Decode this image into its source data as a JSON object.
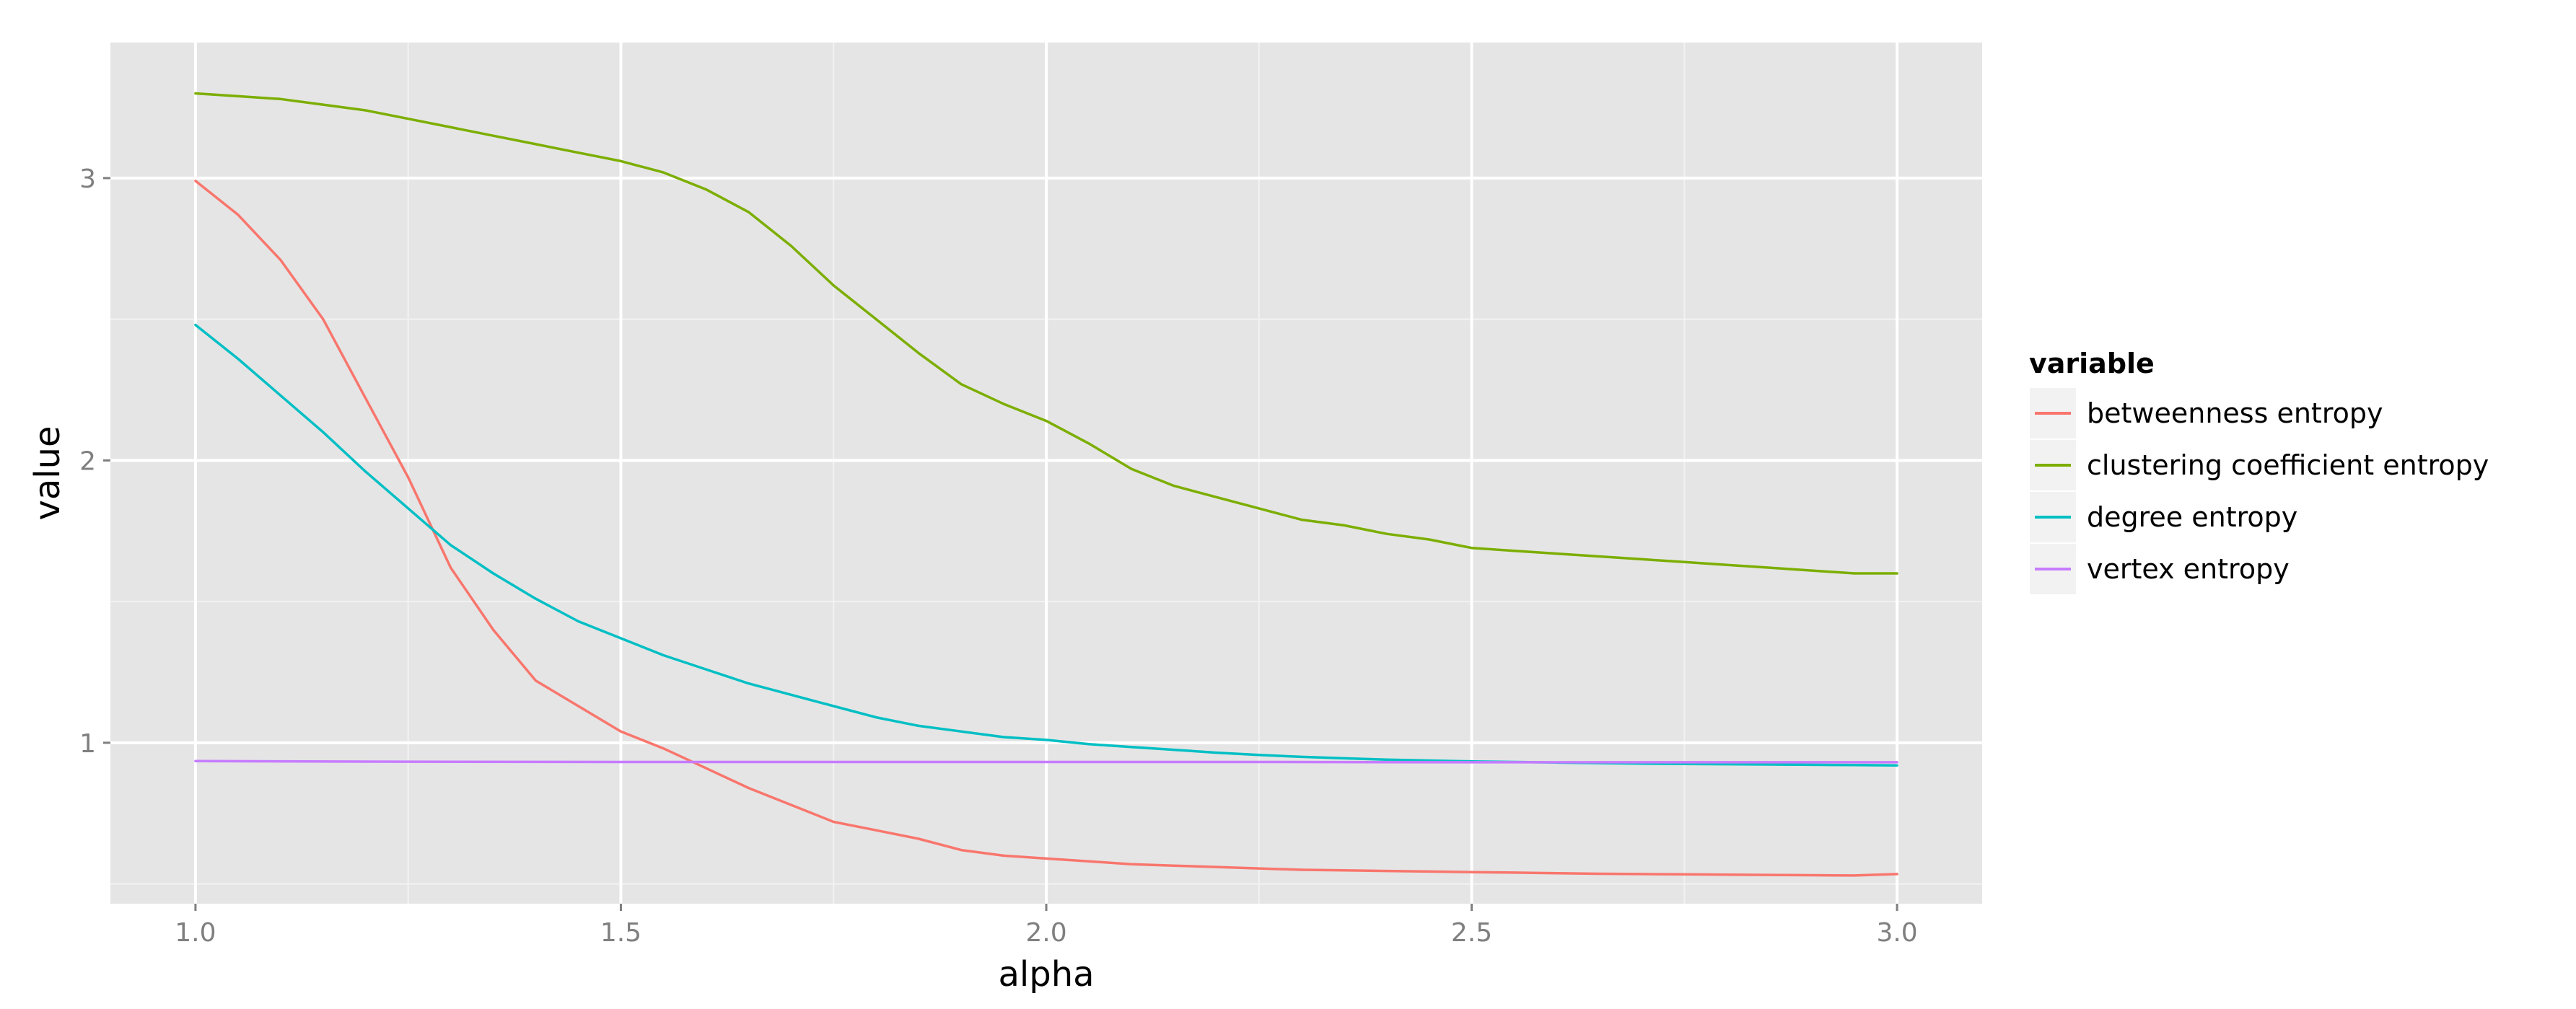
{
  "chart_data": {
    "type": "line",
    "xlabel": "alpha",
    "ylabel": "value",
    "xlim": [
      0.9,
      3.1
    ],
    "ylim": [
      0.43,
      3.48
    ],
    "x_ticks": [
      1.0,
      1.5,
      2.0,
      2.5,
      3.0
    ],
    "x_tick_labels": [
      "1.0",
      "1.5",
      "2.0",
      "2.5",
      "3.0"
    ],
    "y_ticks": [
      1,
      2,
      3
    ],
    "y_tick_labels": [
      "1",
      "2",
      "3"
    ],
    "grid": true,
    "legend": {
      "title": "variable",
      "position": "right"
    },
    "colors": {
      "panel_background": "#e5e5e5",
      "grid_major": "#ffffff",
      "grid_minor": "#f2f2f2",
      "tick_text": "#7f7f7f",
      "legend_key_background": "#f2f2f2"
    },
    "series": [
      {
        "name": "betweenness entropy",
        "color": "#f8766d",
        "x": [
          1.0,
          1.05,
          1.1,
          1.15,
          1.2,
          1.25,
          1.3,
          1.35,
          1.4,
          1.45,
          1.5,
          1.55,
          1.6,
          1.65,
          1.7,
          1.75,
          1.8,
          1.85,
          1.9,
          1.95,
          2.0,
          2.05,
          2.1,
          2.15,
          2.2,
          2.25,
          2.3,
          2.35,
          2.4,
          2.45,
          2.5,
          2.55,
          2.6,
          2.65,
          2.7,
          2.75,
          2.8,
          2.85,
          2.9,
          2.95,
          3.0
        ],
        "y": [
          2.99,
          2.87,
          2.71,
          2.5,
          2.22,
          1.94,
          1.62,
          1.4,
          1.22,
          1.13,
          1.04,
          0.98,
          0.91,
          0.84,
          0.78,
          0.72,
          0.69,
          0.66,
          0.62,
          0.6,
          0.59,
          0.58,
          0.57,
          0.565,
          0.56,
          0.555,
          0.55,
          0.548,
          0.546,
          0.544,
          0.542,
          0.54,
          0.538,
          0.536,
          0.535,
          0.534,
          0.533,
          0.532,
          0.531,
          0.53,
          0.535
        ]
      },
      {
        "name": "clustering coefficient entropy",
        "color": "#7cae00",
        "x": [
          1.0,
          1.05,
          1.1,
          1.15,
          1.2,
          1.25,
          1.3,
          1.35,
          1.4,
          1.45,
          1.5,
          1.55,
          1.6,
          1.65,
          1.7,
          1.75,
          1.8,
          1.85,
          1.9,
          1.95,
          2.0,
          2.05,
          2.1,
          2.15,
          2.2,
          2.25,
          2.3,
          2.35,
          2.4,
          2.45,
          2.5,
          2.55,
          2.6,
          2.65,
          2.7,
          2.75,
          2.8,
          2.85,
          2.9,
          2.95,
          3.0
        ],
        "y": [
          3.3,
          3.29,
          3.28,
          3.26,
          3.24,
          3.21,
          3.18,
          3.15,
          3.12,
          3.09,
          3.06,
          3.02,
          2.96,
          2.88,
          2.76,
          2.62,
          2.5,
          2.38,
          2.27,
          2.2,
          2.14,
          2.06,
          1.97,
          1.91,
          1.87,
          1.83,
          1.79,
          1.77,
          1.74,
          1.72,
          1.69,
          1.68,
          1.67,
          1.66,
          1.65,
          1.64,
          1.63,
          1.62,
          1.61,
          1.6,
          1.6
        ]
      },
      {
        "name": "degree entropy",
        "color": "#00bfc4",
        "x": [
          1.0,
          1.05,
          1.1,
          1.15,
          1.2,
          1.25,
          1.3,
          1.35,
          1.4,
          1.45,
          1.5,
          1.55,
          1.6,
          1.65,
          1.7,
          1.75,
          1.8,
          1.85,
          1.9,
          1.95,
          2.0,
          2.05,
          2.1,
          2.15,
          2.2,
          2.25,
          2.3,
          2.35,
          2.4,
          2.45,
          2.5,
          2.55,
          2.6,
          2.65,
          2.7,
          2.75,
          2.8,
          2.85,
          2.9,
          2.95,
          3.0
        ],
        "y": [
          2.48,
          2.36,
          2.23,
          2.1,
          1.96,
          1.83,
          1.7,
          1.6,
          1.51,
          1.43,
          1.37,
          1.31,
          1.26,
          1.21,
          1.17,
          1.13,
          1.09,
          1.06,
          1.04,
          1.02,
          1.01,
          0.995,
          0.985,
          0.975,
          0.965,
          0.957,
          0.95,
          0.945,
          0.94,
          0.937,
          0.934,
          0.932,
          0.93,
          0.928,
          0.926,
          0.925,
          0.924,
          0.923,
          0.922,
          0.921,
          0.92
        ]
      },
      {
        "name": "vertex entropy",
        "color": "#c77cff",
        "x": [
          1.0,
          1.25,
          1.5,
          1.75,
          2.0,
          2.25,
          2.5,
          2.75,
          3.0
        ],
        "y": [
          0.935,
          0.933,
          0.932,
          0.932,
          0.932,
          0.932,
          0.931,
          0.931,
          0.931
        ]
      }
    ]
  }
}
